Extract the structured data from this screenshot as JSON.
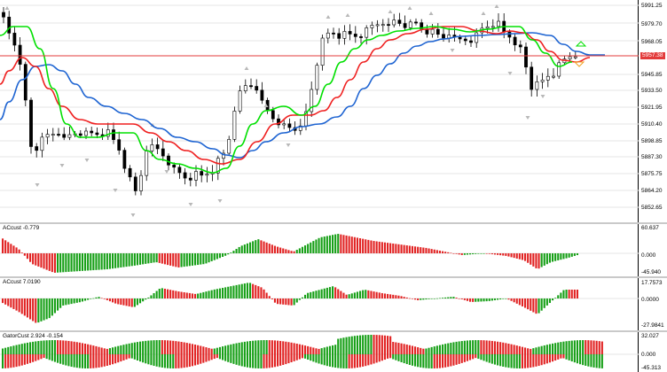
{
  "colors": {
    "background": "#ffffff",
    "grid": "#e4e4e4",
    "candle": "#000000",
    "ma_green": "#00e000",
    "ma_red": "#ef2020",
    "ma_blue": "#1e64d2",
    "hist_up": "#169f16",
    "hist_down": "#e12222",
    "price_line": "#e33b3b",
    "arrow": "#b8b8b8"
  },
  "main_chart": {
    "price_tag": "5957.38",
    "ticks": [
      "5991.25",
      "5979.70",
      "5968.05",
      "5945.85",
      "5933.50",
      "5921.95",
      "5910.40",
      "5898.85",
      "5887.30",
      "5875.75",
      "5864.20",
      "5852.65"
    ]
  },
  "sub1": {
    "title": "ACcust -0.779",
    "ticks": [
      "60.637",
      "0.000",
      "-45.940"
    ]
  },
  "sub2": {
    "title": "ACcust 7.0190",
    "ticks": [
      "17.7573",
      "0.0000",
      "-27.9841"
    ]
  },
  "sub3": {
    "title": "GatorCust 2.924 -0.154",
    "ticks": [
      "32.027",
      "0.000",
      "-45.313"
    ]
  }
}
